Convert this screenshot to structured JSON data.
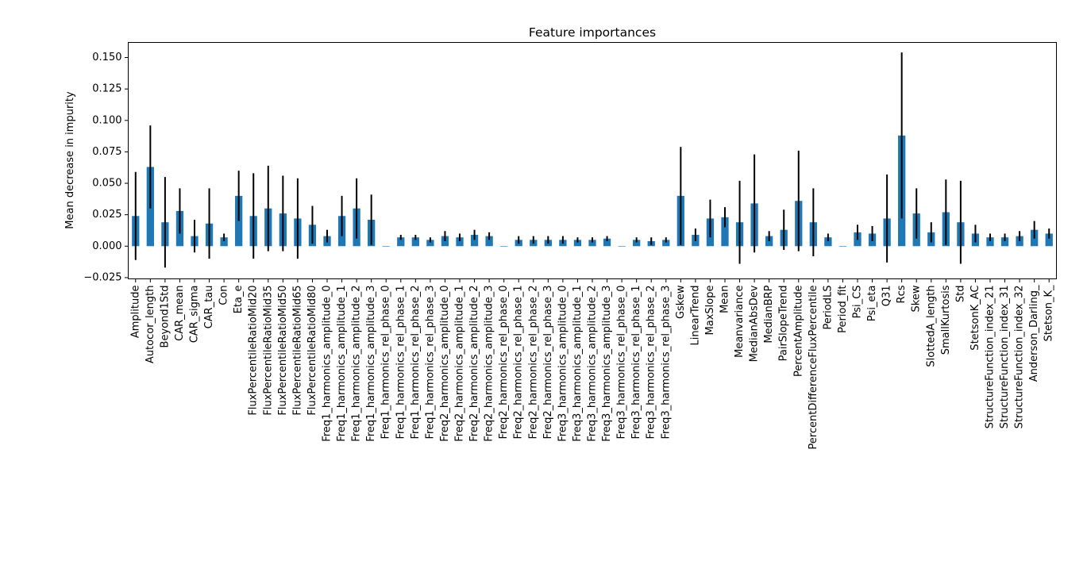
{
  "chart_data": {
    "type": "bar",
    "title": "Feature importances",
    "xlabel": "",
    "ylabel": "Mean decrease in impurity",
    "ylim": [
      -0.026,
      0.162
    ],
    "yticks": [
      -0.025,
      0.0,
      0.025,
      0.05,
      0.075,
      0.1,
      0.125,
      0.15
    ],
    "ytick_labels": [
      "−0.025",
      "0.000",
      "0.025",
      "0.050",
      "0.075",
      "0.100",
      "0.125",
      "0.150"
    ],
    "grid": false,
    "bar_color": "#1f77b4",
    "error_color": "#000000",
    "categories": [
      "Amplitude",
      "Autocor_length",
      "Beyond1Std",
      "CAR_mean",
      "CAR_sigma",
      "CAR_tau",
      "Con",
      "Eta_e",
      "FluxPercentileRatioMid20",
      "FluxPercentileRatioMid35",
      "FluxPercentileRatioMid50",
      "FluxPercentileRatioMid65",
      "FluxPercentileRatioMid80",
      "Freq1_harmonics_amplitude_0",
      "Freq1_harmonics_amplitude_1",
      "Freq1_harmonics_amplitude_2",
      "Freq1_harmonics_amplitude_3",
      "Freq1_harmonics_rel_phase_0",
      "Freq1_harmonics_rel_phase_1",
      "Freq1_harmonics_rel_phase_2",
      "Freq1_harmonics_rel_phase_3",
      "Freq2_harmonics_amplitude_0",
      "Freq2_harmonics_amplitude_1",
      "Freq2_harmonics_amplitude_2",
      "Freq2_harmonics_amplitude_3",
      "Freq2_harmonics_rel_phase_0",
      "Freq2_harmonics_rel_phase_1",
      "Freq2_harmonics_rel_phase_2",
      "Freq2_harmonics_rel_phase_3",
      "Freq3_harmonics_amplitude_0",
      "Freq3_harmonics_amplitude_1",
      "Freq3_harmonics_amplitude_2",
      "Freq3_harmonics_amplitude_3",
      "Freq3_harmonics_rel_phase_0",
      "Freq3_harmonics_rel_phase_1",
      "Freq3_harmonics_rel_phase_2",
      "Freq3_harmonics_rel_phase_3",
      "Gskew",
      "LinearTrend",
      "MaxSlope",
      "Mean",
      "Meanvariance",
      "MedianAbsDev",
      "MedianBRP",
      "PairSlopeTrend",
      "PercentAmplitude",
      "PercentDifferenceFluxPercentile",
      "PeriodLS",
      "Period_fit",
      "Psi_CS",
      "Psi_eta",
      "Q31",
      "Rcs",
      "Skew",
      "SlottedA_length",
      "SmallKurtosis",
      "Std",
      "StetsonK_AC",
      "StructureFunction_index_21",
      "StructureFunction_index_31",
      "StructureFunction_index_32",
      "Anderson_Darling_",
      "Stetson_K_"
    ],
    "values": [
      0.024,
      0.063,
      0.019,
      0.028,
      0.008,
      0.018,
      0.007,
      0.04,
      0.024,
      0.03,
      0.026,
      0.022,
      0.017,
      0.008,
      0.024,
      0.03,
      0.021,
      0.0,
      0.007,
      0.007,
      0.005,
      0.008,
      0.007,
      0.009,
      0.008,
      0.0,
      0.005,
      0.005,
      0.005,
      0.005,
      0.005,
      0.005,
      0.006,
      0.0,
      0.005,
      0.004,
      0.005,
      0.04,
      0.009,
      0.022,
      0.023,
      0.019,
      0.034,
      0.008,
      0.013,
      0.036,
      0.019,
      0.007,
      0.0,
      0.011,
      0.01,
      0.022,
      0.088,
      0.026,
      0.011,
      0.027,
      0.019,
      0.01,
      0.007,
      0.007,
      0.008,
      0.013,
      0.01
    ],
    "errors": [
      0.035,
      0.033,
      0.036,
      0.018,
      0.013,
      0.028,
      0.003,
      0.02,
      0.034,
      0.034,
      0.03,
      0.032,
      0.015,
      0.005,
      0.016,
      0.024,
      0.02,
      0.0,
      0.002,
      0.002,
      0.002,
      0.004,
      0.003,
      0.004,
      0.003,
      0.0,
      0.003,
      0.003,
      0.003,
      0.003,
      0.002,
      0.002,
      0.002,
      0.0,
      0.002,
      0.003,
      0.002,
      0.039,
      0.005,
      0.015,
      0.008,
      0.033,
      0.039,
      0.004,
      0.016,
      0.04,
      0.027,
      0.003,
      0.0,
      0.006,
      0.006,
      0.035,
      0.066,
      0.02,
      0.008,
      0.026,
      0.033,
      0.007,
      0.003,
      0.003,
      0.004,
      0.007,
      0.004
    ]
  }
}
